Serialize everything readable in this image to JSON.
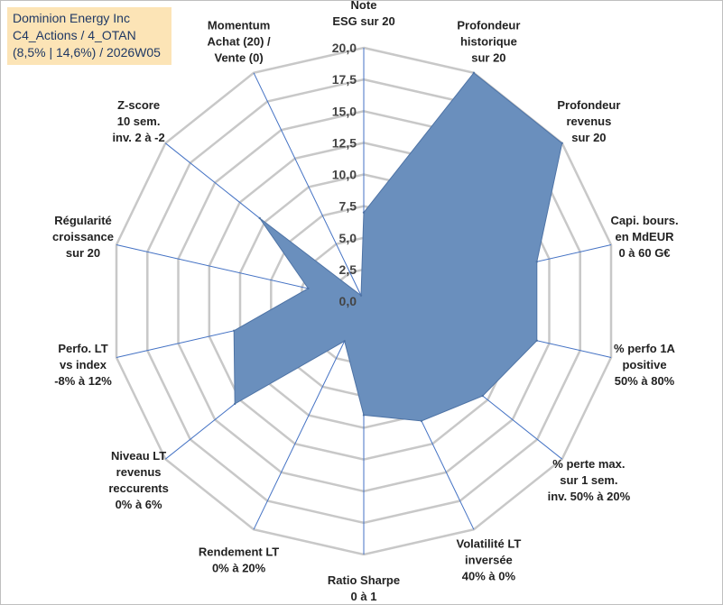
{
  "title_box": {
    "line1": "Dominion Energy Inc",
    "line2": "C4_Actions / 4_OTAN",
    "line3": "(8,5% | 14,6%) / 2026W05"
  },
  "chart_data": {
    "type": "radar",
    "title": "Dominion Energy Inc",
    "rmin": 0,
    "rmax": 20,
    "ticks": [
      0,
      2.5,
      5,
      7.5,
      10,
      12.5,
      15,
      17.5,
      20
    ],
    "tick_labels": [
      "0,0",
      "2,5",
      "5,0",
      "7,5",
      "10,0",
      "12,5",
      "15,0",
      "17,5",
      "20,0"
    ],
    "grid": true,
    "fill_color": "#6a8fbd",
    "fill_stroke": "#4e73a5",
    "grid_color": "#c8c8c8",
    "spoke_color": "#4472c4",
    "axes": [
      {
        "label": [
          "Note",
          "ESG sur 20"
        ],
        "value": 7.0
      },
      {
        "label": [
          "Profondeur",
          "historique",
          "sur 20"
        ],
        "value": 20.0
      },
      {
        "label": [
          "Profondeur",
          "revenus",
          "sur 20"
        ],
        "value": 20.0
      },
      {
        "label": [
          "Capi. bours.",
          "en MdEUR",
          "0 à 60 G€"
        ],
        "value": 14.0
      },
      {
        "label": [
          "% perfo 1A",
          "positive",
          "50% à 80%"
        ],
        "value": 14.0
      },
      {
        "label": [
          "% perte max.",
          "sur 1 sem.",
          "inv. 50% à 20%"
        ],
        "value": 12.0
      },
      {
        "label": [
          "Volatilité LT",
          "inversée",
          "40% à 0%"
        ],
        "value": 10.5
      },
      {
        "label": [
          "Ratio Sharpe",
          "0 à 1"
        ],
        "value": 9.0
      },
      {
        "label": [
          "Rendement LT",
          "0% à 20%"
        ],
        "value": 3.5
      },
      {
        "label": [
          "Niveau LT",
          "revenus",
          "reccurents",
          "0% à 6%"
        ],
        "value": 13.0
      },
      {
        "label": [
          "Perfo. LT",
          "vs index",
          "-8% à 12%"
        ],
        "value": 10.5
      },
      {
        "label": [
          "Régularité",
          "croissance",
          "sur 20"
        ],
        "value": 4.5
      },
      {
        "label": [
          "Z-score",
          "10 sem.",
          "inv. 2 à -2"
        ],
        "value": 10.5
      },
      {
        "label": [
          "Momentum",
          "Achat (20) /",
          "Vente (0)"
        ],
        "value": 0.5
      }
    ]
  }
}
